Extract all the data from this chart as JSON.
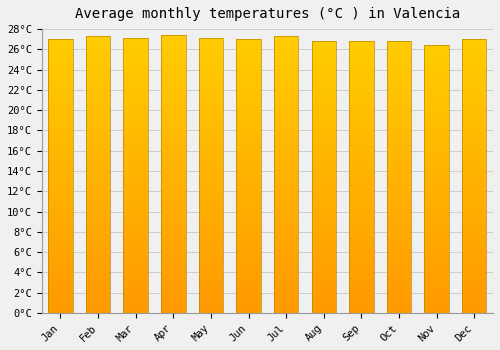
{
  "title": "Average monthly temperatures (°C ) in Valencia",
  "months": [
    "Jan",
    "Feb",
    "Mar",
    "Apr",
    "May",
    "Jun",
    "Jul",
    "Aug",
    "Sep",
    "Oct",
    "Nov",
    "Dec"
  ],
  "values": [
    27.0,
    27.3,
    27.1,
    27.4,
    27.1,
    27.0,
    27.3,
    26.8,
    26.8,
    26.8,
    26.4,
    27.0
  ],
  "ylim": [
    0,
    28
  ],
  "yticks": [
    0,
    2,
    4,
    6,
    8,
    10,
    12,
    14,
    16,
    18,
    20,
    22,
    24,
    26,
    28
  ],
  "bar_color_top": "#FFCC00",
  "bar_color_bottom": "#FF9900",
  "bar_edge_color": "#BB8800",
  "background_color": "#F0F0F0",
  "grid_color": "#CCCCCC",
  "title_fontsize": 10,
  "tick_fontsize": 7.5,
  "font_family": "monospace",
  "bar_width": 0.65
}
